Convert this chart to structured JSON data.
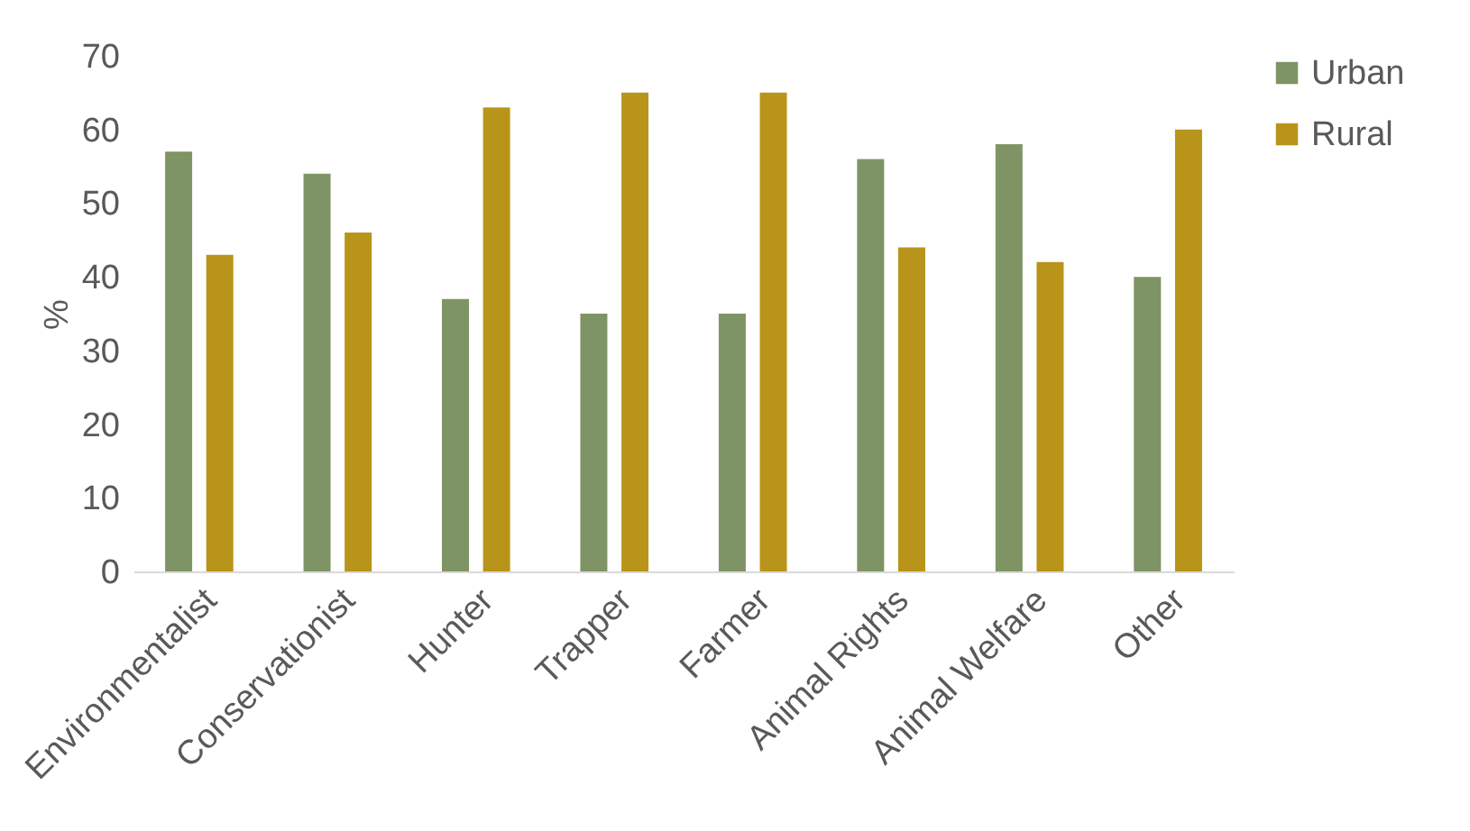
{
  "chart_data": {
    "type": "bar",
    "ylabel": "%",
    "categories": [
      "Environmentalist",
      "Conservationist",
      "Hunter",
      "Trapper",
      "Farmer",
      "Animal Rights",
      "Animal Welfare",
      "Other"
    ],
    "series": [
      {
        "name": "Urban",
        "color": "#7f9464",
        "values": [
          57,
          54,
          37,
          35,
          35,
          56,
          58,
          40
        ]
      },
      {
        "name": "Rural",
        "color": "#b8941a",
        "values": [
          43,
          46,
          63,
          65,
          65,
          44,
          42,
          60
        ]
      }
    ],
    "ylim": [
      0,
      70
    ],
    "yticks": [
      0,
      10,
      20,
      30,
      40,
      50,
      60,
      70
    ],
    "grid": false,
    "legend": "right"
  }
}
